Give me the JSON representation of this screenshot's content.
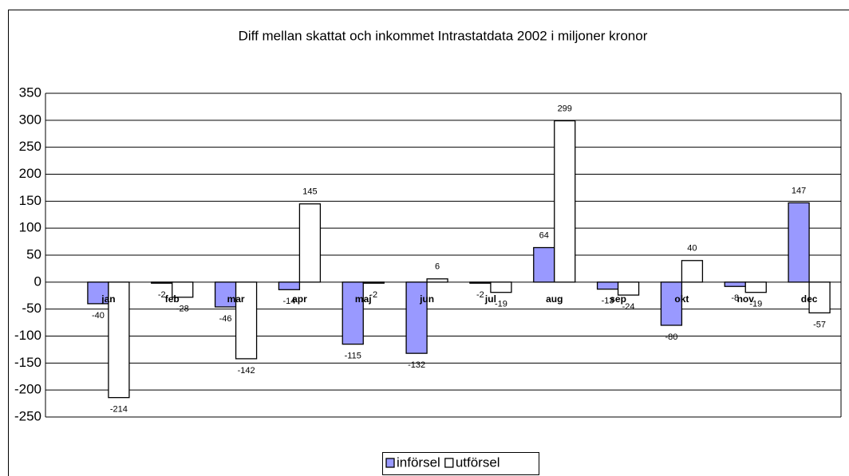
{
  "chart_data": {
    "type": "bar",
    "title": "Diff mellan skattat och inkommet Intrastatdata 2002 i miljoner kronor",
    "categories": [
      "jan",
      "feb",
      "mar",
      "apr",
      "maj",
      "jun",
      "jul",
      "aug",
      "sep",
      "okt",
      "nov",
      "dec"
    ],
    "series": [
      {
        "name": "införsel",
        "color": "#9999ff",
        "values": [
          -40,
          -2,
          -46,
          -14,
          -115,
          -132,
          -2,
          64,
          -13,
          -80,
          -8,
          147
        ]
      },
      {
        "name": "utförsel",
        "color": "#ffffff",
        "values": [
          -214,
          -28,
          -142,
          145,
          -2,
          6,
          -19,
          299,
          -24,
          40,
          -19,
          -57
        ]
      }
    ],
    "ylim": [
      -250,
      350
    ],
    "yticks": [
      -250,
      -200,
      -150,
      -100,
      -50,
      0,
      50,
      100,
      150,
      200,
      250,
      300,
      350
    ],
    "grid": true,
    "legend": "bottom"
  }
}
